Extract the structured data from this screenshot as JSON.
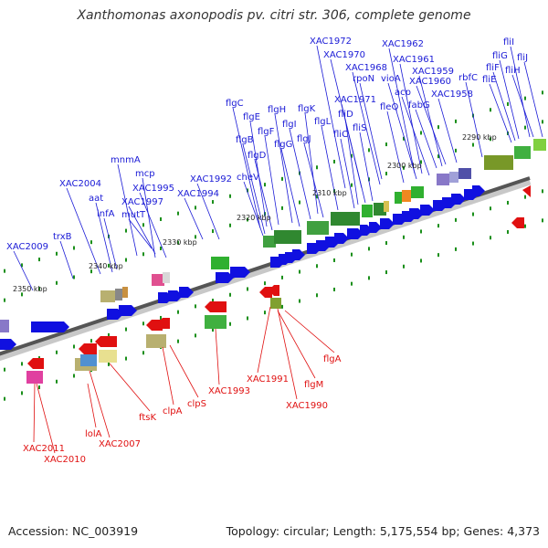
{
  "title": "Xanthomonas axonopodis pv. citri str. 306, complete genome",
  "footer": {
    "accession": "Accession: NC_003919",
    "summary": "Topology: circular; Length: 5,175,554 bp; Genes: 4,373"
  },
  "colors": {
    "forward_label": "#1a1ad6",
    "reverse_label": "#e01010",
    "forward_gene": "#1010e0",
    "reverse_gene": "#e01010",
    "backbone": "#555555",
    "tick": "#1a8f1a"
  },
  "ticks": [
    "2350 kbp",
    "2340 kbp",
    "2330 kbp",
    "2320 kbp",
    "2310 kbp",
    "2300 kbp",
    "2290 kbp"
  ],
  "forward_labels": [
    "XAC2009",
    "trxB",
    "XAC2004",
    "aat",
    "infA",
    "mnmA",
    "mcp",
    "XAC1995",
    "XAC1997",
    "mutT",
    "XAC1992",
    "XAC1994",
    "cheV",
    "flgC",
    "flgB",
    "flgE",
    "flgD",
    "flgF",
    "flgH",
    "flgG",
    "flgI",
    "flgK",
    "flgJ",
    "flgL",
    "fliD",
    "fliC",
    "XAC1971",
    "fliS",
    "XAC1972",
    "XAC1970",
    "XAC1968",
    "rpoN",
    "XAC1962",
    "vioA",
    "fleQ",
    "XAC1961",
    "acp",
    "XAC1959",
    "XAC1960",
    "fabG",
    "XAC1958",
    "rbfC",
    "fliI",
    "fliG",
    "fliF",
    "fliJ",
    "fliH",
    "fliE"
  ],
  "reverse_labels": [
    "XAC2011",
    "XAC2010",
    "lolA",
    "XAC2007",
    "ftsK",
    "clpA",
    "clpS",
    "XAC1993",
    "XAC1991",
    "XAC1990",
    "flgM",
    "flgA"
  ]
}
